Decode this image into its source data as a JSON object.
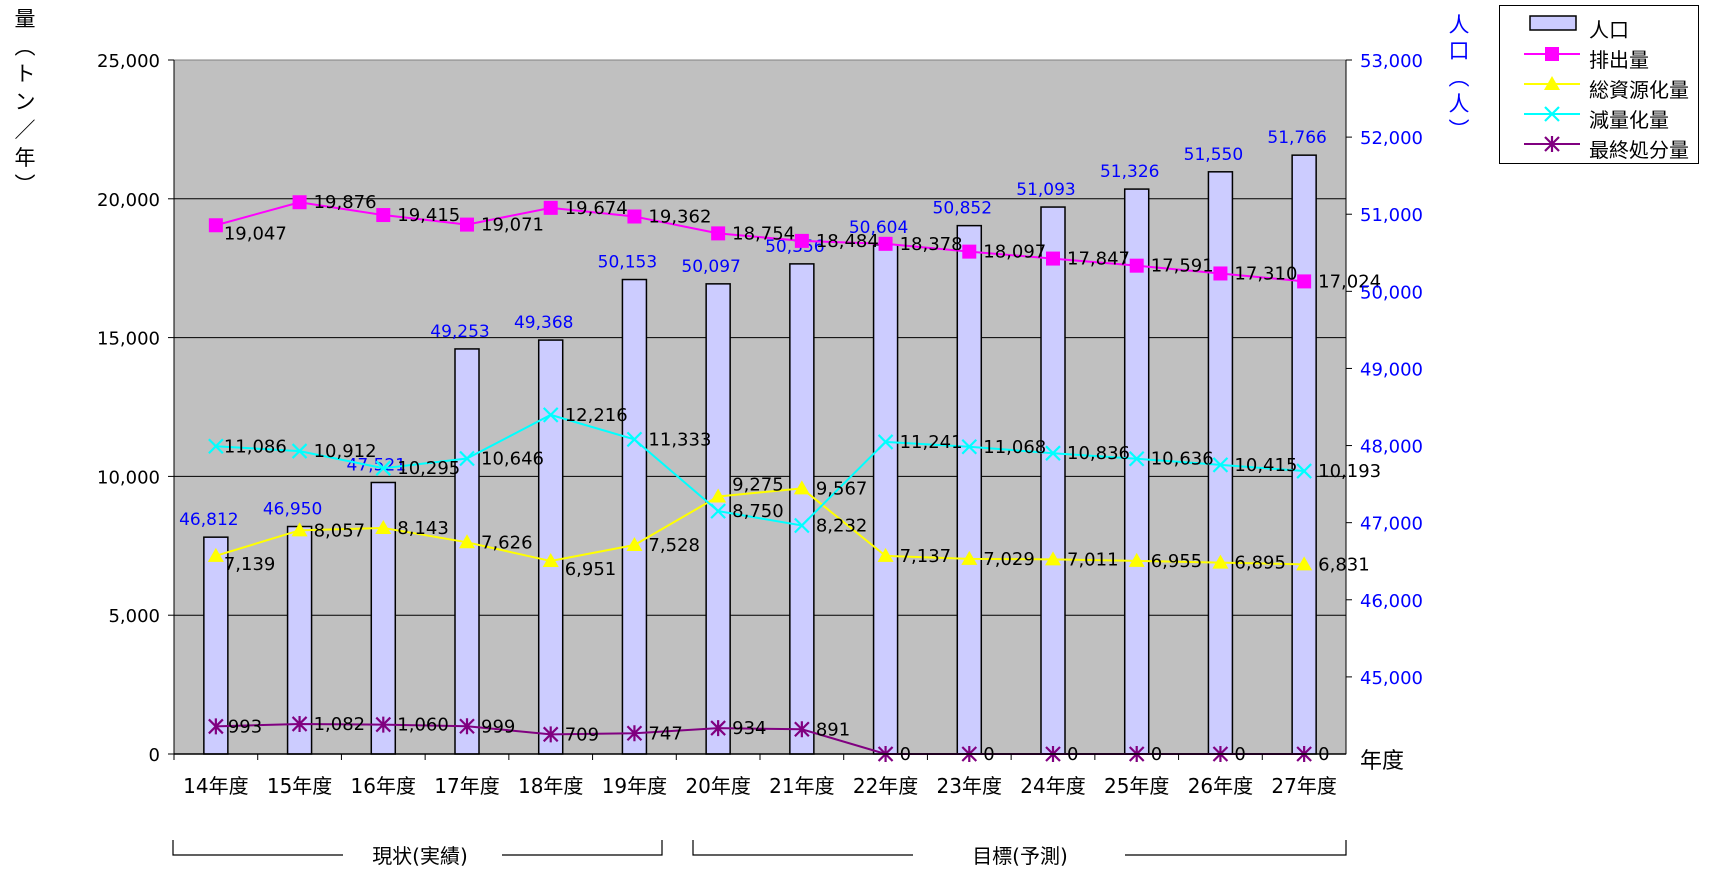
{
  "chart_data": {
    "type": "bar+line",
    "categories": [
      "14年度",
      "15年度",
      "16年度",
      "17年度",
      "18年度",
      "19年度",
      "20年度",
      "21年度",
      "22年度",
      "23年度",
      "24年度",
      "25年度",
      "26年度",
      "27年度"
    ],
    "bar_series": {
      "name": "人口",
      "axis": "right",
      "values": [
        46812,
        46950,
        47521,
        49253,
        49368,
        50153,
        50097,
        50356,
        50604,
        50852,
        51093,
        51326,
        51550,
        51766
      ],
      "labels": [
        "46,812",
        "46,950",
        "47,521",
        "49,253",
        "49,368",
        "50,153",
        "50,097",
        "50,356",
        "50,604",
        "50,852",
        "51,093",
        "51,326",
        "51,550",
        "51,766"
      ],
      "color": "#ccccff"
    },
    "line_series": [
      {
        "name": "排出量",
        "color": "#ff00ff",
        "marker": "square",
        "values": [
          19047,
          19876,
          19415,
          19071,
          19674,
          19362,
          18754,
          18484,
          18378,
          18097,
          17847,
          17591,
          17310,
          17024
        ],
        "labels": [
          "19,047",
          "19,876",
          "19,415",
          "19,071",
          "19,674",
          "19,362",
          "18,754",
          "18,484",
          "18,378",
          "18,097",
          "17,847",
          "17,591",
          "17,310",
          "17,024"
        ]
      },
      {
        "name": "総資源化量",
        "color": "#ffff00",
        "marker": "triangle",
        "values": [
          7139,
          8057,
          8143,
          7626,
          6951,
          7528,
          9275,
          9567,
          7137,
          7029,
          7011,
          6955,
          6895,
          6831
        ],
        "labels": [
          "7,139",
          "8,057",
          "8,143",
          "7,626",
          "6,951",
          "7,528",
          "9,275",
          "9,567",
          "7,137",
          "7,029",
          "7,011",
          "6,955",
          "6,895",
          "6,831"
        ]
      },
      {
        "name": "減量化量",
        "color": "#00ffff",
        "marker": "x",
        "values": [
          11086,
          10912,
          10295,
          10646,
          12216,
          11333,
          8750,
          8232,
          11241,
          11068,
          10836,
          10636,
          10415,
          10193
        ],
        "labels": [
          "11,086",
          "10,912",
          "10,295",
          "10,646",
          "12,216",
          "11,333",
          "8,750",
          "8,232",
          "11,241",
          "11,068",
          "10,836",
          "10,636",
          "10,415",
          "10,193"
        ]
      },
      {
        "name": "最終処分量",
        "color": "#800080",
        "marker": "asterisk",
        "values": [
          993,
          1082,
          1060,
          999,
          709,
          747,
          934,
          891,
          0,
          0,
          0,
          0,
          0,
          0
        ],
        "labels": [
          "993",
          "1,082",
          "1,060",
          "999",
          "709",
          "747",
          "934",
          "891",
          "0",
          "0",
          "0",
          "0",
          "0",
          "0"
        ]
      }
    ],
    "left_axis": {
      "label": "量（トン／年）",
      "ylim": [
        0,
        25000
      ],
      "ticks": [
        "0",
        "5,000",
        "10,000",
        "15,000",
        "20,000",
        "25,000"
      ]
    },
    "right_axis": {
      "label": "人口（人）",
      "ylim": [
        44000,
        53000
      ],
      "ticks": [
        "45,000",
        "46,000",
        "47,000",
        "48,000",
        "49,000",
        "50,000",
        "51,000",
        "52,000",
        "53,000"
      ]
    },
    "x_axis_unit": "年度",
    "period_labels": [
      "現状(実績)",
      "目標(予測)"
    ],
    "legend_position": "top-right",
    "grid": true,
    "plot_background": "#c0c0c0"
  }
}
